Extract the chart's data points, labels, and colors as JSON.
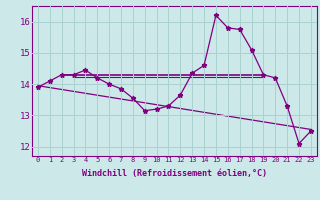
{
  "hours": [
    0,
    1,
    2,
    3,
    4,
    5,
    6,
    7,
    8,
    9,
    10,
    11,
    12,
    13,
    14,
    15,
    16,
    17,
    18,
    19,
    20,
    21,
    22,
    23
  ],
  "windchill": [
    13.9,
    14.1,
    14.3,
    14.3,
    14.45,
    14.2,
    14.0,
    13.85,
    13.55,
    13.15,
    13.2,
    13.3,
    13.65,
    14.35,
    14.6,
    16.2,
    15.8,
    15.75,
    15.1,
    14.3,
    14.2,
    13.3,
    12.1,
    12.5
  ],
  "bg_color": "#cce8e8",
  "line_color": "#800080",
  "marker": "*",
  "xlabel": "Windchill (Refroidissement éolien,°C)",
  "ylim": [
    11.7,
    16.5
  ],
  "xlim": [
    -0.5,
    23.5
  ],
  "yticks": [
    12,
    13,
    14,
    15,
    16
  ],
  "grid_color": "#aad0d0",
  "font_color": "#800080",
  "hline1_y": 14.28,
  "hline1_x0": 2,
  "hline1_x1": 19,
  "hline2_y": 14.22,
  "hline2_x0": 3,
  "hline2_x1": 19,
  "trend_x0": 0,
  "trend_x1": 23,
  "trend_y0": 13.95,
  "trend_y1": 12.55
}
